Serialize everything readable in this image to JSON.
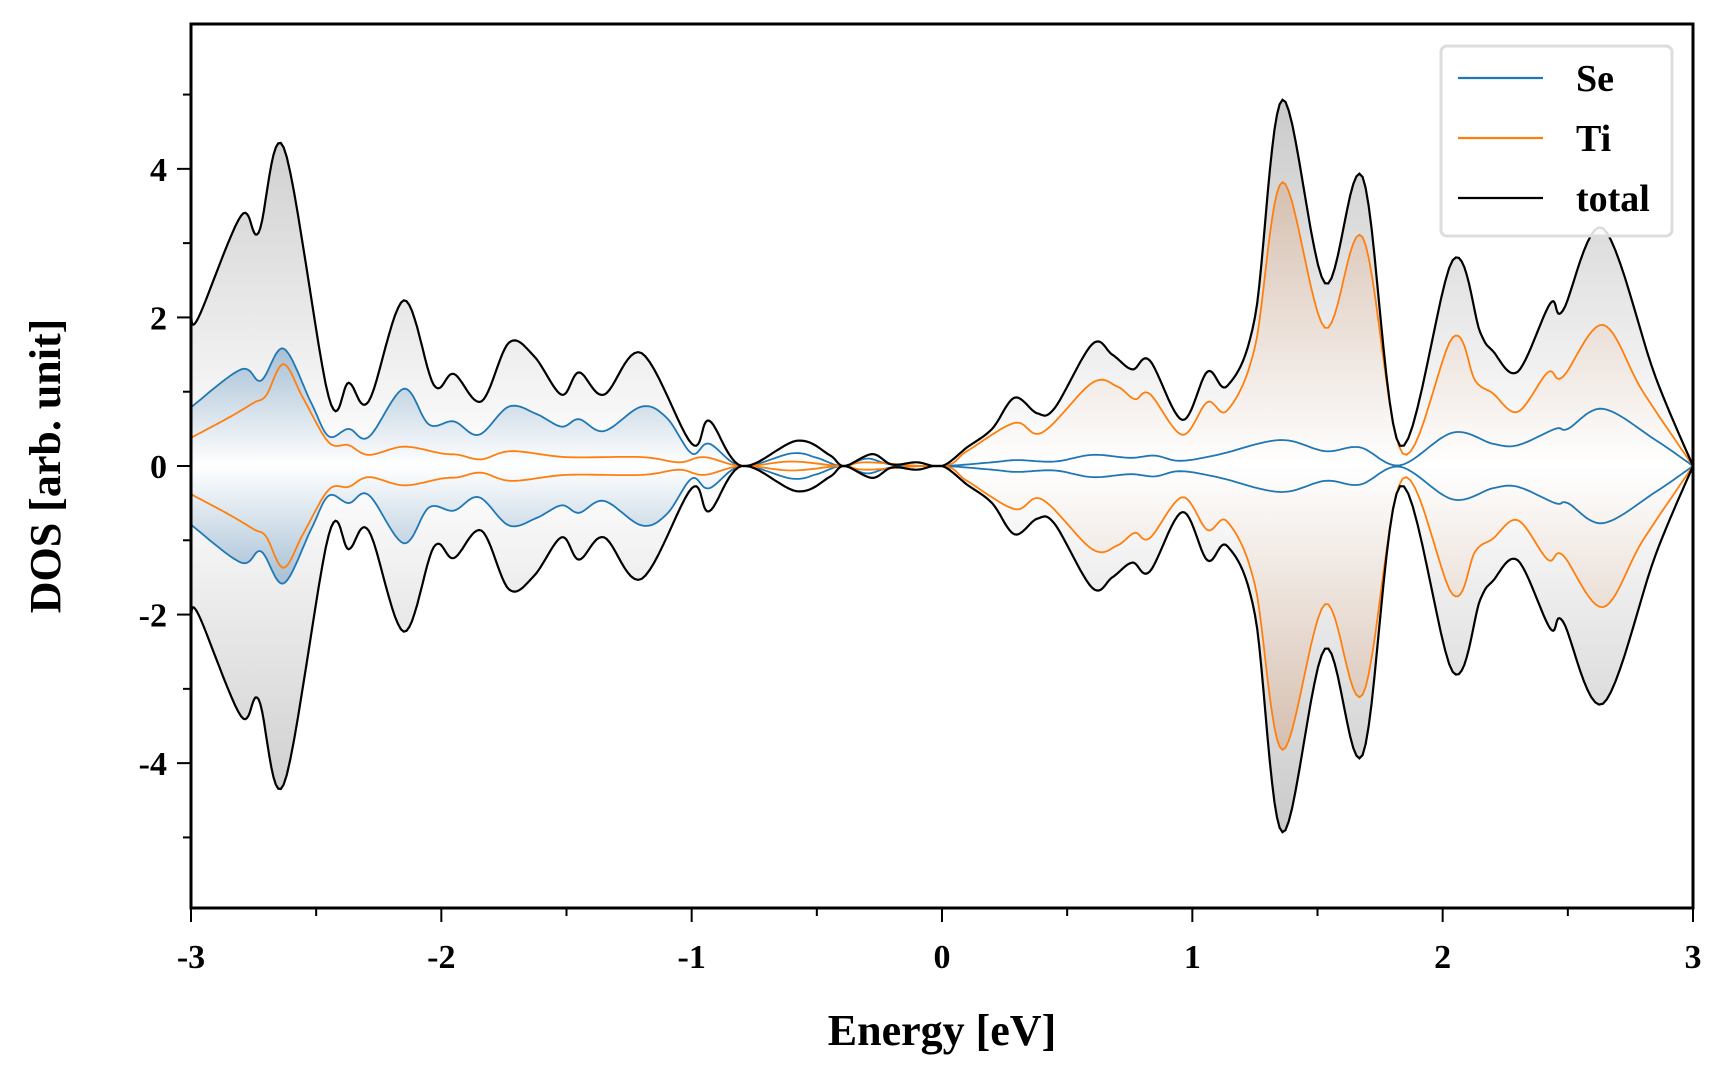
{
  "chart_data": {
    "type": "line",
    "title": "",
    "xlabel": "Energy [eV]",
    "ylabel": "DOS [arb. unit]",
    "xlim": [
      -3,
      3
    ],
    "ylim": [
      -5.95,
      5.95
    ],
    "xticks": [
      "-3",
      "-2",
      "-1",
      "0",
      "1",
      "2",
      "3"
    ],
    "yticks": [
      "-4",
      "-2",
      "0",
      "2",
      "4"
    ],
    "grid": false,
    "legend_position": "top-right",
    "mirrored_negative": true,
    "series": [
      {
        "name": "Se",
        "color": "#1f77b4",
        "fill": "left",
        "points": [
          [
            -3,
            0.79
          ],
          [
            -2.8,
            1.3
          ],
          [
            -2.72,
            1.15
          ],
          [
            -2.63,
            1.58
          ],
          [
            -2.52,
            0.85
          ],
          [
            -2.45,
            0.4
          ],
          [
            -2.37,
            0.5
          ],
          [
            -2.29,
            0.39
          ],
          [
            -2.15,
            1.04
          ],
          [
            -2.05,
            0.56
          ],
          [
            -1.95,
            0.6
          ],
          [
            -1.85,
            0.42
          ],
          [
            -1.73,
            0.8
          ],
          [
            -1.62,
            0.7
          ],
          [
            -1.52,
            0.53
          ],
          [
            -1.45,
            0.63
          ],
          [
            -1.35,
            0.47
          ],
          [
            -1.2,
            0.8
          ],
          [
            -1.1,
            0.65
          ],
          [
            -1.0,
            0.17
          ],
          [
            -0.93,
            0.3
          ],
          [
            -0.8,
            0
          ],
          [
            -0.6,
            0.17
          ],
          [
            -0.5,
            0.11
          ],
          [
            -0.4,
            0
          ],
          [
            -0.3,
            0.1
          ],
          [
            -0.2,
            0.02
          ],
          [
            0,
            0
          ],
          [
            0.2,
            0.05
          ],
          [
            0.3,
            0.08
          ],
          [
            0.45,
            0.06
          ],
          [
            0.6,
            0.15
          ],
          [
            0.75,
            0.11
          ],
          [
            0.85,
            0.14
          ],
          [
            0.95,
            0.07
          ],
          [
            1.1,
            0.15
          ],
          [
            1.35,
            0.35
          ],
          [
            1.53,
            0.2
          ],
          [
            1.67,
            0.25
          ],
          [
            1.83,
            0.01
          ],
          [
            2.04,
            0.45
          ],
          [
            2.2,
            0.3
          ],
          [
            2.3,
            0.28
          ],
          [
            2.45,
            0.5
          ],
          [
            2.5,
            0.5
          ],
          [
            2.64,
            0.77
          ],
          [
            2.85,
            0.35
          ],
          [
            3,
            0
          ]
        ]
      },
      {
        "name": "Ti",
        "color": "#ff7f0e",
        "fill": "right",
        "points": [
          [
            -3,
            0.38
          ],
          [
            -2.85,
            0.65
          ],
          [
            -2.75,
            0.85
          ],
          [
            -2.7,
            0.95
          ],
          [
            -2.63,
            1.37
          ],
          [
            -2.55,
            0.9
          ],
          [
            -2.45,
            0.32
          ],
          [
            -2.37,
            0.28
          ],
          [
            -2.29,
            0.15
          ],
          [
            -2.15,
            0.26
          ],
          [
            -2.0,
            0.17
          ],
          [
            -1.93,
            0.15
          ],
          [
            -1.84,
            0.09
          ],
          [
            -1.72,
            0.2
          ],
          [
            -1.5,
            0.12
          ],
          [
            -1.2,
            0.12
          ],
          [
            -1.05,
            0.05
          ],
          [
            -0.95,
            0.12
          ],
          [
            -0.8,
            0
          ],
          [
            -0.6,
            0.06
          ],
          [
            -0.4,
            0
          ],
          [
            -0.3,
            0.05
          ],
          [
            0,
            0
          ],
          [
            0.1,
            0.2
          ],
          [
            0.29,
            0.58
          ],
          [
            0.4,
            0.45
          ],
          [
            0.6,
            1.12
          ],
          [
            0.7,
            1.07
          ],
          [
            0.77,
            0.9
          ],
          [
            0.83,
            0.97
          ],
          [
            0.96,
            0.42
          ],
          [
            1.06,
            0.86
          ],
          [
            1.14,
            0.75
          ],
          [
            1.25,
            1.6
          ],
          [
            1.36,
            3.82
          ],
          [
            1.53,
            1.86
          ],
          [
            1.68,
            3.08
          ],
          [
            1.84,
            0.17
          ],
          [
            2.04,
            1.73
          ],
          [
            2.13,
            1.15
          ],
          [
            2.2,
            0.98
          ],
          [
            2.3,
            0.73
          ],
          [
            2.42,
            1.26
          ],
          [
            2.48,
            1.2
          ],
          [
            2.64,
            1.9
          ],
          [
            2.8,
            1.0
          ],
          [
            3,
            0
          ]
        ]
      },
      {
        "name": "total",
        "color": "#000000",
        "fill": "all",
        "points": [
          [
            -3,
            2.01
          ],
          [
            -2.97,
            2.0
          ],
          [
            -2.8,
            3.37
          ],
          [
            -2.73,
            3.14
          ],
          [
            -2.63,
            4.29
          ],
          [
            -2.45,
            0.93
          ],
          [
            -2.37,
            1.12
          ],
          [
            -2.29,
            0.87
          ],
          [
            -2.15,
            2.23
          ],
          [
            -2.03,
            1.09
          ],
          [
            -1.95,
            1.24
          ],
          [
            -1.84,
            0.87
          ],
          [
            -1.73,
            1.66
          ],
          [
            -1.63,
            1.48
          ],
          [
            -1.52,
            0.96
          ],
          [
            -1.45,
            1.26
          ],
          [
            -1.35,
            0.96
          ],
          [
            -1.2,
            1.52
          ],
          [
            -1.0,
            0.3
          ],
          [
            -0.93,
            0.61
          ],
          [
            -0.8,
            0
          ],
          [
            -0.58,
            0.34
          ],
          [
            -0.45,
            0.15
          ],
          [
            -0.39,
            0
          ],
          [
            -0.28,
            0.16
          ],
          [
            -0.2,
            0.02
          ],
          [
            -0.1,
            0.05
          ],
          [
            0,
            0
          ],
          [
            0.1,
            0.25
          ],
          [
            0.2,
            0.5
          ],
          [
            0.29,
            0.92
          ],
          [
            0.38,
            0.71
          ],
          [
            0.45,
            0.78
          ],
          [
            0.6,
            1.64
          ],
          [
            0.68,
            1.5
          ],
          [
            0.76,
            1.3
          ],
          [
            0.83,
            1.42
          ],
          [
            0.96,
            0.62
          ],
          [
            1.06,
            1.27
          ],
          [
            1.14,
            1.08
          ],
          [
            1.25,
            2.0
          ],
          [
            1.36,
            4.93
          ],
          [
            1.53,
            2.46
          ],
          [
            1.68,
            3.89
          ],
          [
            1.83,
            0.27
          ],
          [
            2.04,
            2.77
          ],
          [
            2.15,
            1.8
          ],
          [
            2.2,
            1.55
          ],
          [
            2.3,
            1.27
          ],
          [
            2.43,
            2.19
          ],
          [
            2.48,
            2.09
          ],
          [
            2.64,
            3.2
          ],
          [
            2.85,
            1.2
          ],
          [
            3,
            0
          ]
        ]
      }
    ]
  }
}
